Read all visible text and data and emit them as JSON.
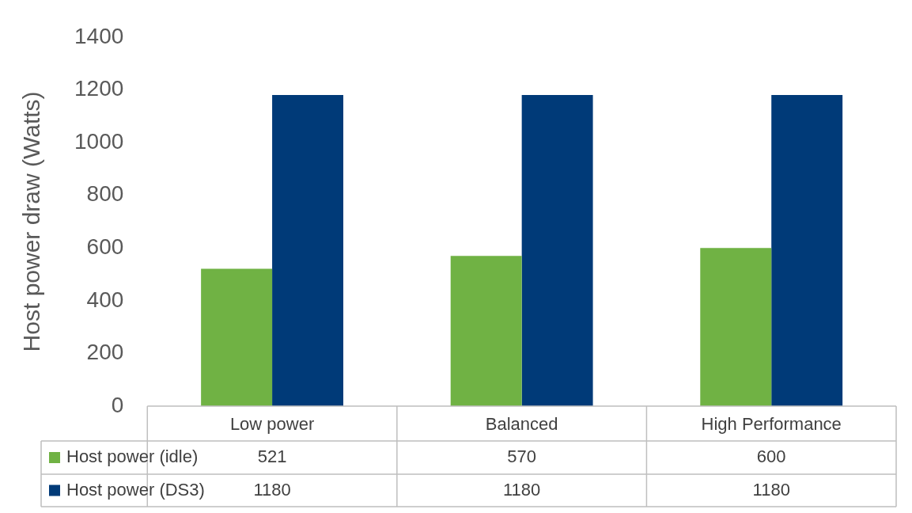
{
  "chart_data": {
    "type": "bar",
    "ylabel": "Host power draw (Watts)",
    "categories": [
      "Low power",
      "Balanced",
      "High Performance"
    ],
    "series": [
      {
        "name": "Host power (idle)",
        "color": "#70b244",
        "values": [
          521,
          570,
          600
        ]
      },
      {
        "name": "Host power (DS3)",
        "color": "#003a78",
        "values": [
          1180,
          1180,
          1180
        ]
      }
    ],
    "ylim": [
      0,
      1400
    ],
    "yticks": [
      0,
      200,
      400,
      600,
      800,
      1000,
      1200,
      1400
    ],
    "grid": false,
    "legend": "bottom",
    "data_labels": true
  }
}
